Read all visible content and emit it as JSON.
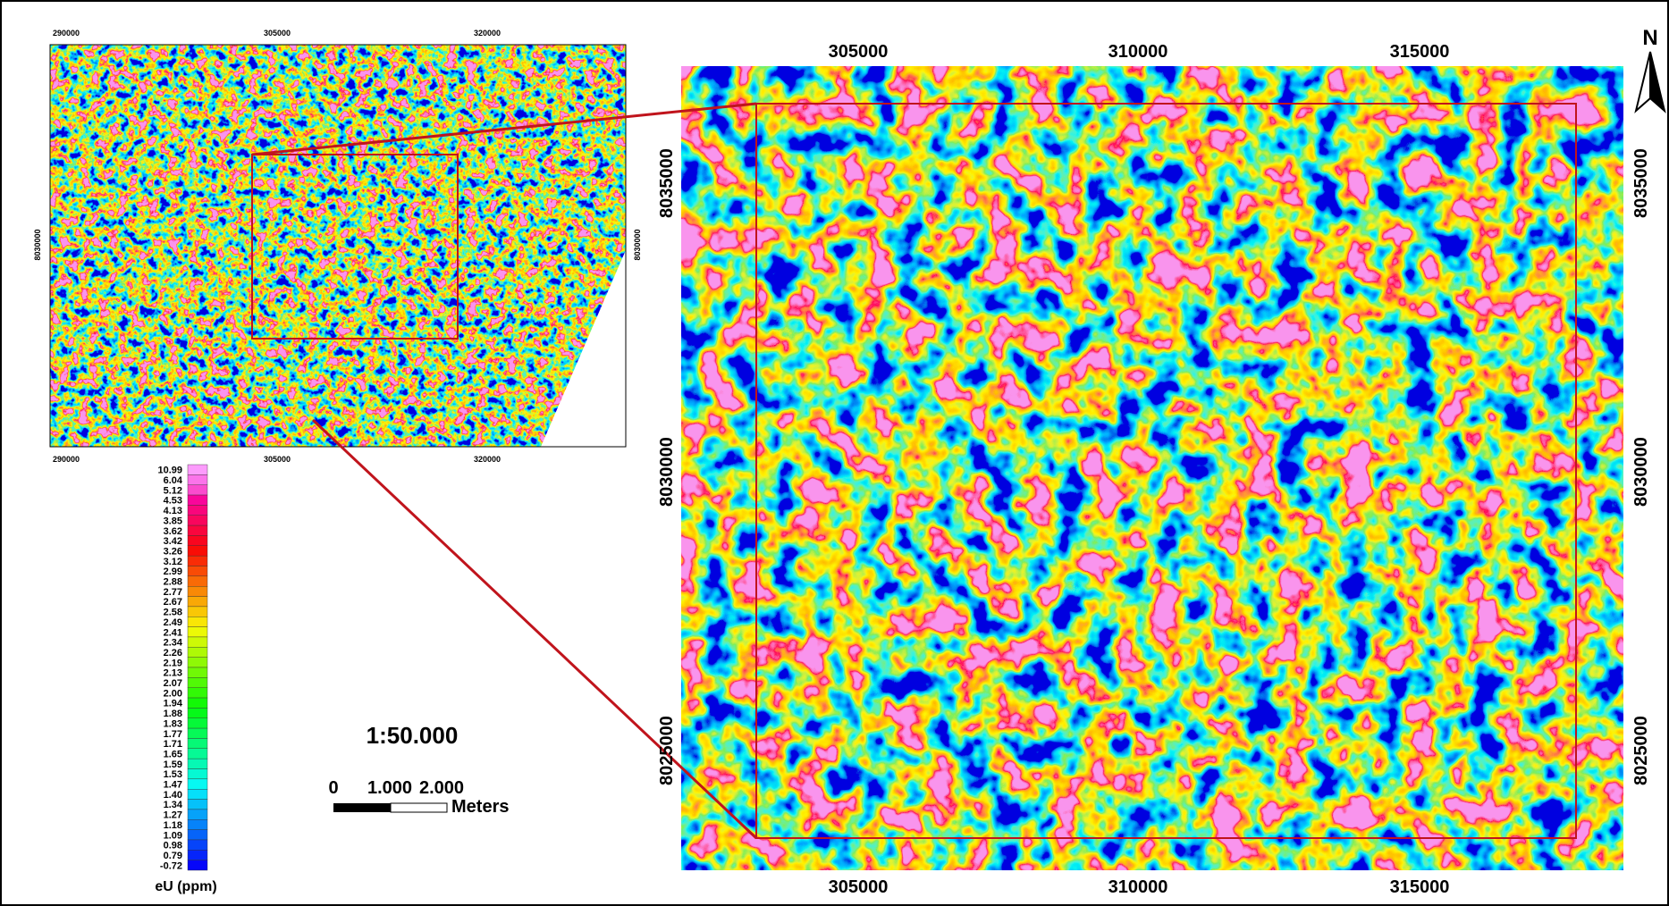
{
  "small_map": {
    "x_labels_top": [
      "290000",
      "305000",
      "320000"
    ],
    "x_labels_bottom": [
      "290000",
      "305000",
      "320000"
    ],
    "y_labels_left": [
      "8030000"
    ],
    "y_labels_right": [
      "8030000"
    ]
  },
  "main_map": {
    "x_labels_top": [
      "305000",
      "310000",
      "315000"
    ],
    "x_labels_bottom": [
      "305000",
      "310000",
      "315000"
    ],
    "y_labels_left": [
      "8035000",
      "8030000",
      "8025000"
    ],
    "y_labels_right": [
      "8035000",
      "8030000",
      "8025000"
    ]
  },
  "north_arrow": "N",
  "legend": {
    "values": [
      "10.99",
      "6.04",
      "5.12",
      "4.53",
      "4.13",
      "3.85",
      "3.62",
      "3.42",
      "3.26",
      "3.12",
      "2.99",
      "2.88",
      "2.77",
      "2.67",
      "2.58",
      "2.49",
      "2.41",
      "2.34",
      "2.26",
      "2.19",
      "2.13",
      "2.07",
      "2.00",
      "1.94",
      "1.88",
      "1.83",
      "1.77",
      "1.71",
      "1.65",
      "1.59",
      "1.53",
      "1.47",
      "1.40",
      "1.34",
      "1.27",
      "1.18",
      "1.09",
      "0.98",
      "0.79",
      "-0.72"
    ],
    "title": "eU (ppm)"
  },
  "scale": {
    "ratio": "1:50.000",
    "labels": [
      "0",
      "1.000",
      "2.000"
    ],
    "unit": "Meters"
  }
}
